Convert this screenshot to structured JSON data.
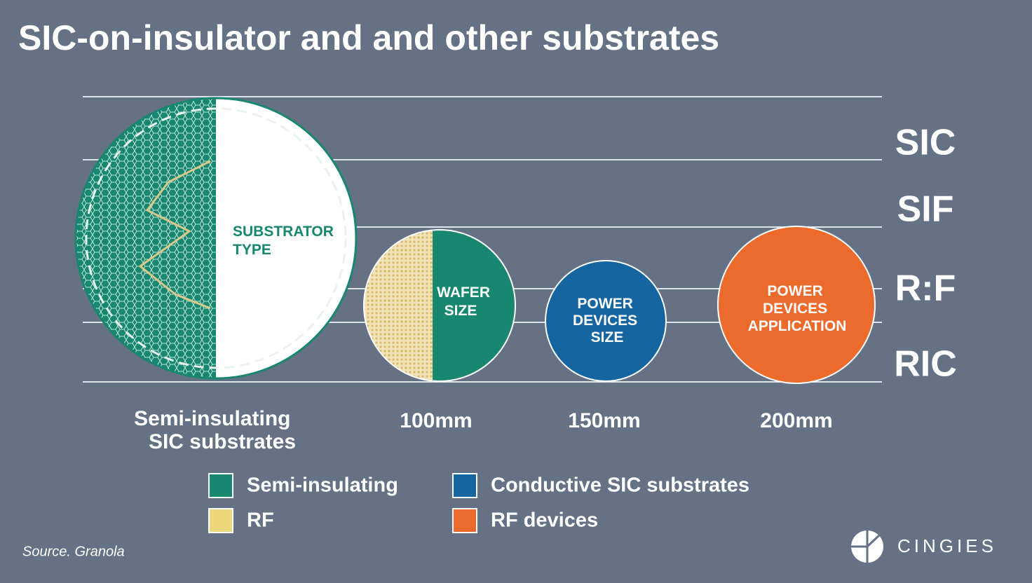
{
  "title": "SIC-on-insulator and and other substrates",
  "row_labels": [
    "SIC",
    "SIF",
    "R:F",
    "RIC"
  ],
  "circles": [
    {
      "lines": [
        "SUBSTRATOR",
        "TYPE"
      ],
      "caption": [
        "Semi-insulating",
        "SIC substrates"
      ]
    },
    {
      "lines": [
        "WAFER",
        "SIZE"
      ],
      "caption": [
        "100mm"
      ]
    },
    {
      "lines": [
        "POWER",
        "DEVICES",
        "SIZE"
      ],
      "caption": [
        "150mm"
      ]
    },
    {
      "lines": [
        "POWER",
        "DEVICES",
        "APPLICATION"
      ],
      "caption": [
        "200mm"
      ]
    }
  ],
  "legend": [
    {
      "label": "Semi-insulating",
      "color": "#17876f"
    },
    {
      "label": "Conductive SIC substrates",
      "color": "#1565a0"
    },
    {
      "label": "RF",
      "color": "#ecd77a"
    },
    {
      "label": "RF devices",
      "color": "#ec6a2c"
    }
  ],
  "source": "Source. Granola",
  "logo": "CINGIES"
}
